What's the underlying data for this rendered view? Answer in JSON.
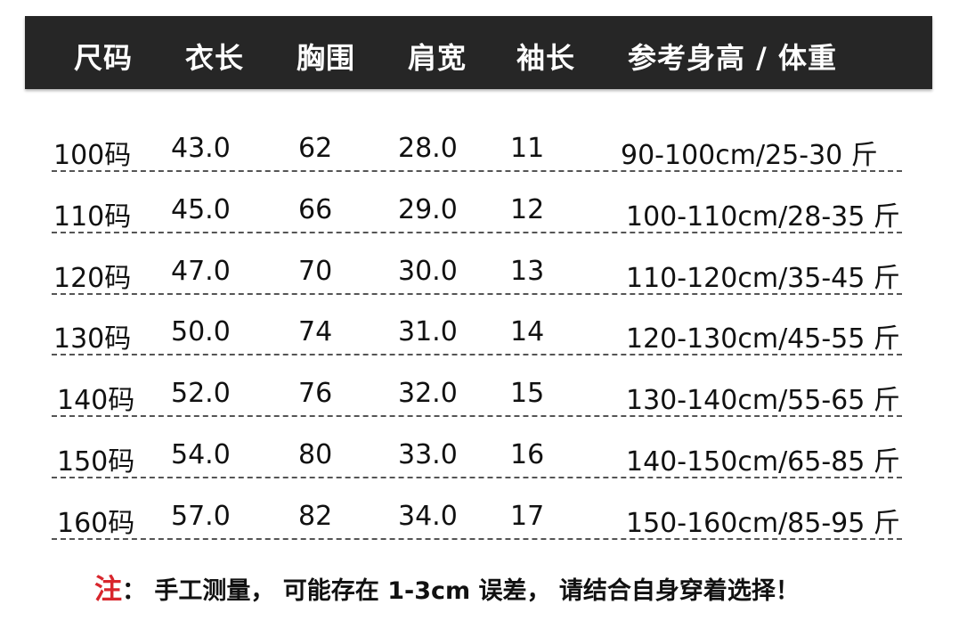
{
  "header": [
    "尺码",
    "衣长",
    "胸围",
    "肩宽",
    "袖长",
    "参考身高 / 体重"
  ],
  "rows": [
    [
      "100码",
      "43.0",
      "62",
      "28.0",
      "11",
      "90-100cm/25-30 斤"
    ],
    [
      "110码",
      "45.0",
      "66",
      "29.0",
      "12",
      "100-110cm/28-35 斤"
    ],
    [
      "120码",
      "47.0",
      "70",
      "30.0",
      "13",
      "110-120cm/35-45 斤"
    ],
    [
      "130码",
      "50.0",
      "74",
      "31.0",
      "14",
      "120-130cm/45-55 斤"
    ],
    [
      "140码",
      "52.0",
      "76",
      "32.0",
      "15",
      "130-140cm/55-65 斤"
    ],
    [
      "150码",
      "54.0",
      "80",
      "33.0",
      "16",
      "140-150cm/65-85 斤"
    ],
    [
      "160码",
      "57.0",
      "82",
      "34.0",
      "17",
      "150-160cm/85-95 斤"
    ]
  ],
  "note": {
    "mark": "注",
    "text": "： 手工测量， 可能存在 1-3cm 误差， 请结合自身穿着选择！"
  },
  "colors": {
    "header_bg": "#262626",
    "note_mark": "#d8262d"
  }
}
